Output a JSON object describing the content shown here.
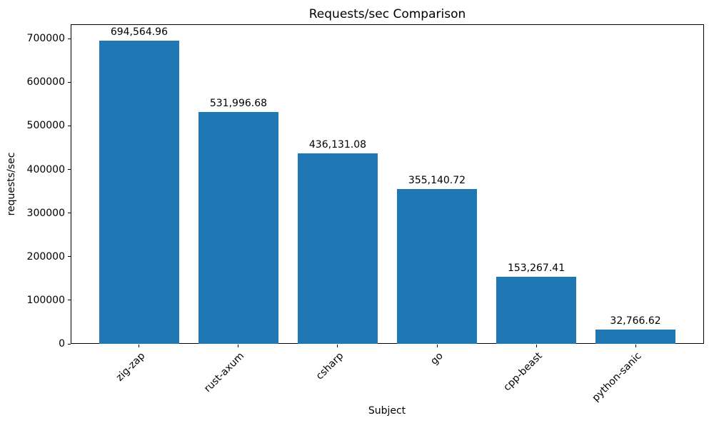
{
  "chart_data": {
    "type": "bar",
    "title": "Requests/sec Comparison",
    "xlabel": "Subject",
    "ylabel": "requests/sec",
    "categories": [
      "zig-zap",
      "rust-axum",
      "csharp",
      "go",
      "cpp-beast",
      "python-sanic"
    ],
    "values": [
      694564.96,
      531996.68,
      436131.08,
      355140.72,
      153267.41,
      32766.62
    ],
    "bar_labels": [
      "694,564.96",
      "531,996.68",
      "436,131.08",
      "355,140.72",
      "153,267.41",
      "32,766.62"
    ],
    "y_ticks": [
      0,
      100000,
      200000,
      300000,
      400000,
      500000,
      600000,
      700000
    ],
    "y_tick_labels": [
      "0",
      "100000",
      "200000",
      "300000",
      "400000",
      "500000",
      "600000",
      "700000"
    ],
    "ylim": [
      0,
      733000
    ],
    "bar_color": "#1f77b4",
    "text_color": "#000000",
    "grid": false,
    "legend": false,
    "x_tick_rotation_deg": 45
  }
}
